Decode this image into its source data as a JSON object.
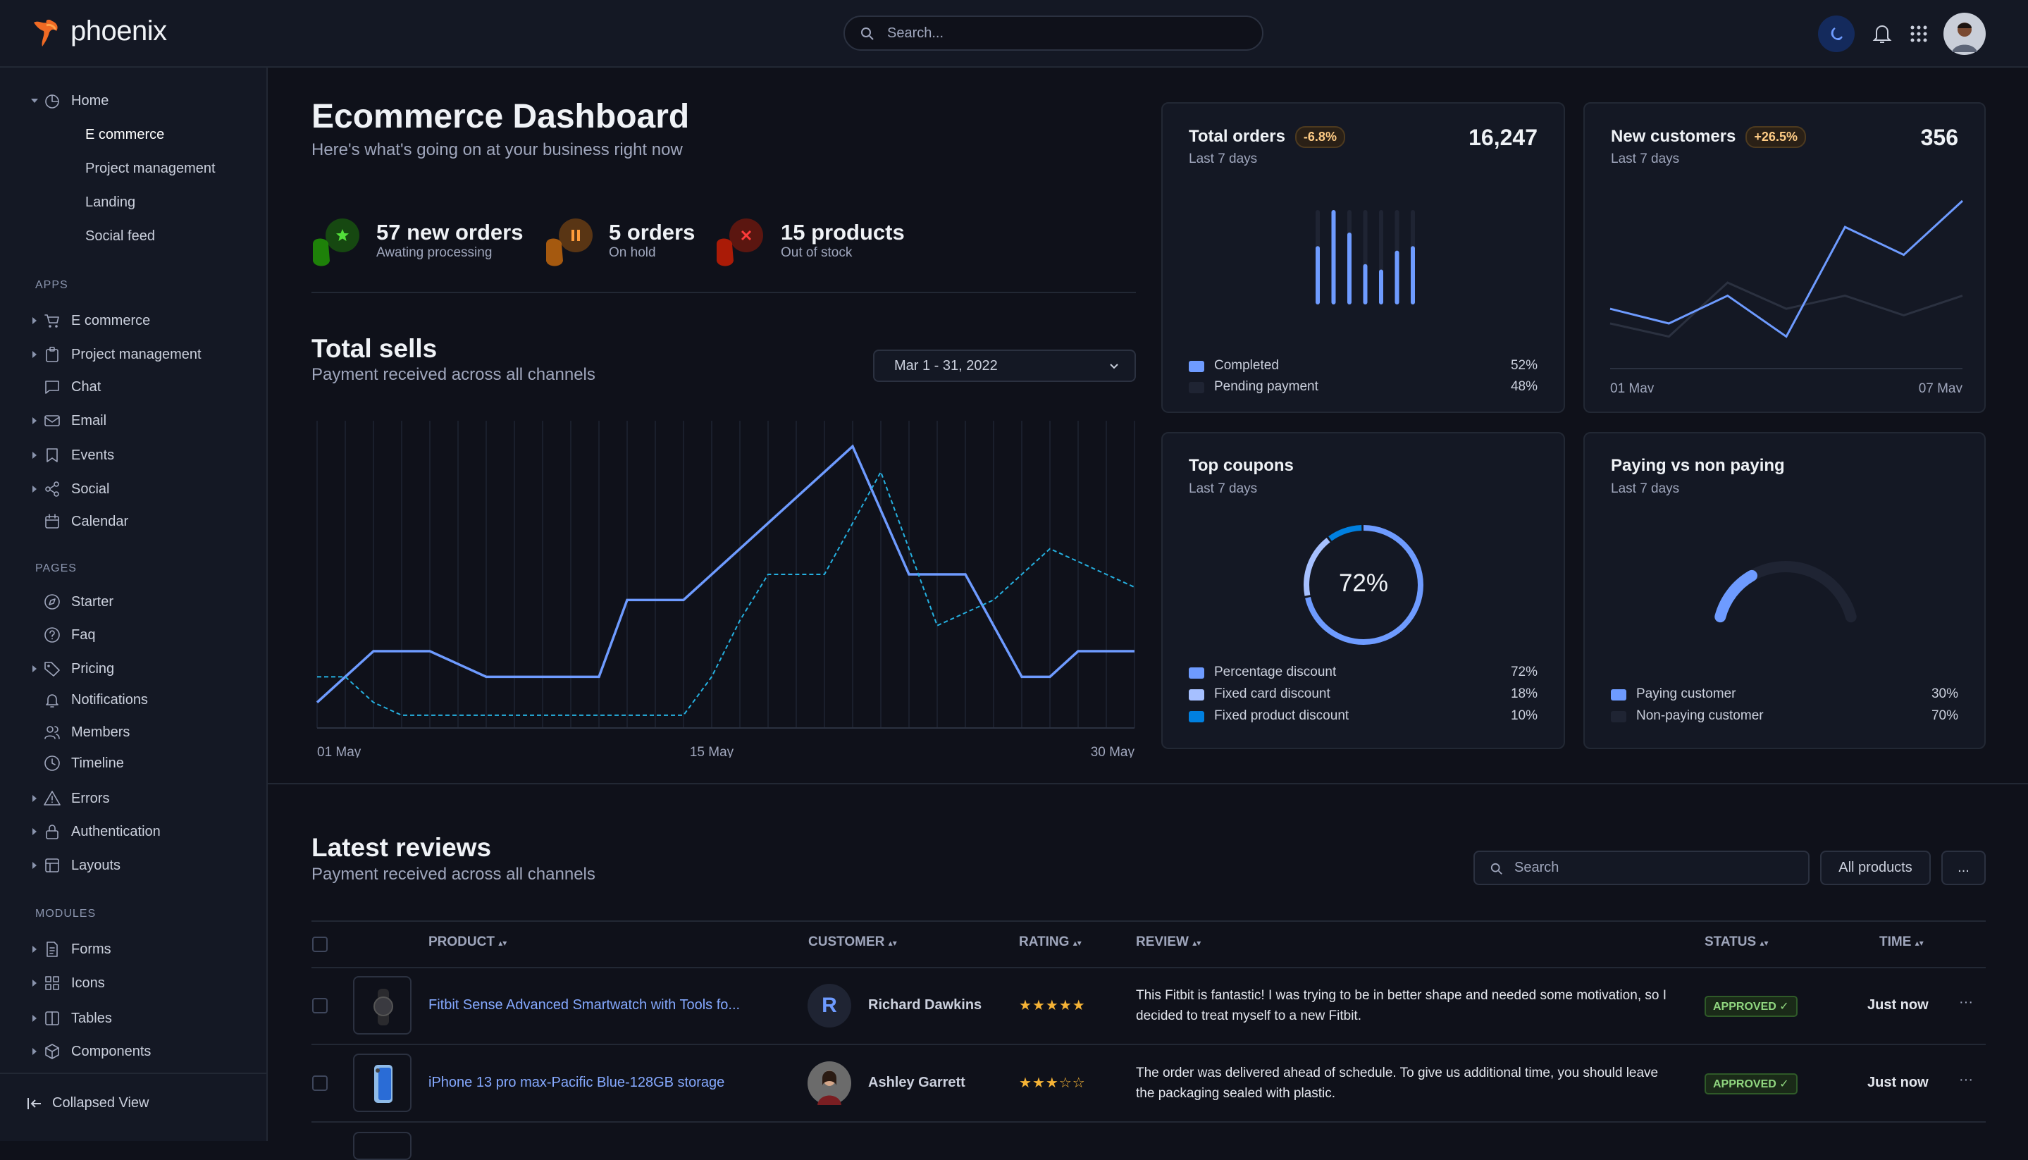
{
  "app": {
    "name": "phoenix",
    "search_placeholder": "Search..."
  },
  "topbar_icons": [
    "moon-icon",
    "bell-icon",
    "apps-grid-icon",
    "user-avatar"
  ],
  "colors": {
    "accent": "#6e9bff",
    "accent_light": "#a6c0ff",
    "cyan": "#25b0e0",
    "muted_series": "#2b3140",
    "badge_warning": "#ffcc85",
    "success": "#90d67f",
    "background": "#0f111a",
    "surface": "#141824"
  },
  "sidebar": {
    "home": {
      "label": "Home",
      "icon": "pie-chart-icon",
      "children": [
        {
          "label": "E commerce",
          "active": true
        },
        {
          "label": "Project management"
        },
        {
          "label": "Landing"
        },
        {
          "label": "Social feed"
        }
      ]
    },
    "sections": [
      {
        "title": "APPS",
        "items": [
          {
            "label": "E commerce",
            "icon": "cart-icon",
            "expandable": true
          },
          {
            "label": "Project management",
            "icon": "clipboard-icon",
            "expandable": true
          },
          {
            "label": "Chat",
            "icon": "chat-icon",
            "expandable": false
          },
          {
            "label": "Email",
            "icon": "mail-icon",
            "expandable": true
          },
          {
            "label": "Events",
            "icon": "bookmark-icon",
            "expandable": true
          },
          {
            "label": "Social",
            "icon": "share-icon",
            "expandable": true
          },
          {
            "label": "Calendar",
            "icon": "calendar-icon",
            "expandable": false
          }
        ]
      },
      {
        "title": "PAGES",
        "items": [
          {
            "label": "Starter",
            "icon": "compass-icon",
            "expandable": false
          },
          {
            "label": "Faq",
            "icon": "help-circle-icon",
            "expandable": false
          },
          {
            "label": "Pricing",
            "icon": "tag-icon",
            "expandable": true
          },
          {
            "label": "Notifications",
            "icon": "bell-icon",
            "expandable": false
          },
          {
            "label": "Members",
            "icon": "users-icon",
            "expandable": false
          },
          {
            "label": "Timeline",
            "icon": "clock-icon",
            "expandable": false
          },
          {
            "label": "Errors",
            "icon": "alert-triangle-icon",
            "expandable": true
          },
          {
            "label": "Authentication",
            "icon": "lock-icon",
            "expandable": true
          },
          {
            "label": "Layouts",
            "icon": "layout-icon",
            "expandable": true
          }
        ]
      },
      {
        "title": "MODULES",
        "items": [
          {
            "label": "Forms",
            "icon": "file-text-icon",
            "expandable": true
          },
          {
            "label": "Icons",
            "icon": "grid-icon",
            "expandable": true
          },
          {
            "label": "Tables",
            "icon": "columns-icon",
            "expandable": true
          },
          {
            "label": "Components",
            "icon": "package-icon",
            "expandable": true
          }
        ]
      }
    ],
    "collapse_label": "Collapsed View"
  },
  "header": {
    "title": "Ecommerce Dashboard",
    "subtitle": "Here's what's going on at your business right now"
  },
  "stats": [
    {
      "value": "57 new orders",
      "label": "Awating processing",
      "icon": "star-icon",
      "color": "#25b003"
    },
    {
      "value": "5 orders",
      "label": "On hold",
      "icon": "pause-icon",
      "color": "#e5780b"
    },
    {
      "value": "15 products",
      "label": "Out of stock",
      "icon": "x-icon",
      "color": "#ec1f00"
    }
  ],
  "total_sells": {
    "title": "Total sells",
    "subtitle": "Payment received across all channels",
    "date_range": "Mar 1 - 31, 2022"
  },
  "cards": {
    "total_orders": {
      "title": "Total orders",
      "badge": "-6.8%",
      "subtitle": "Last 7 days",
      "value": "16,247"
    },
    "new_customers": {
      "title": "New customers",
      "badge": "+26.5%",
      "subtitle": "Last 7 days",
      "value": "356"
    },
    "top_coupons": {
      "title": "Top coupons",
      "subtitle": "Last 7 days",
      "center": "72%"
    },
    "paying": {
      "title": "Paying vs non paying",
      "subtitle": "Last 7 days"
    }
  },
  "chart_data": [
    {
      "id": "total_sells",
      "type": "line",
      "x": [
        "01 May",
        "02 May",
        "03 May",
        "04 May",
        "05 May",
        "06 May",
        "07 May",
        "08 May",
        "09 May",
        "10 May",
        "11 May",
        "12 May",
        "13 May",
        "14 May",
        "15 May",
        "16 May",
        "17 May",
        "18 May",
        "19 May",
        "20 May",
        "21 May",
        "22 May",
        "23 May",
        "24 May",
        "25 May",
        "26 May",
        "27 May",
        "28 May",
        "29 May",
        "30 May"
      ],
      "xticks": [
        "01 May",
        "15 May",
        "30 May"
      ],
      "ylim": [
        0,
        120
      ],
      "grid": "vertical",
      "series": [
        {
          "style": "solid",
          "color": "#6e9bff",
          "values": [
            10,
            20,
            30,
            30,
            30,
            25,
            20,
            20,
            20,
            20,
            20,
            50,
            50,
            50,
            60,
            70,
            80,
            90,
            100,
            110,
            85,
            60,
            60,
            60,
            40,
            20,
            20,
            30,
            30,
            30
          ]
        },
        {
          "style": "dashed",
          "color": "#25b0e0",
          "values": [
            20,
            20,
            10,
            5,
            5,
            5,
            5,
            5,
            5,
            5,
            5,
            5,
            5,
            5,
            20,
            42,
            60,
            60,
            60,
            80,
            100,
            70,
            40,
            45,
            50,
            60,
            70,
            65,
            60,
            55
          ]
        }
      ]
    },
    {
      "id": "total_orders",
      "type": "bar",
      "categories": [
        "1",
        "2",
        "3",
        "4",
        "5",
        "6",
        "7"
      ],
      "values": [
        60,
        100,
        75,
        40,
        34,
        55,
        60
      ],
      "ylim": [
        0,
        100
      ],
      "legend": [
        {
          "name": "Completed",
          "value": "52%",
          "color": "#6e9bff"
        },
        {
          "name": "Pending payment",
          "value": "48%",
          "color": "#1f2433"
        }
      ]
    },
    {
      "id": "new_customers",
      "type": "line",
      "x": [
        "01 May",
        "02 May",
        "03 May",
        "04 May",
        "05 May",
        "06 May",
        "07 May"
      ],
      "xticks": [
        "01 May",
        "07 May"
      ],
      "ylim": [
        0,
        100
      ],
      "series": [
        {
          "color": "#6e9bff",
          "values": [
            34,
            25,
            42,
            17,
            84,
            67,
            100
          ]
        },
        {
          "color": "#2b3140",
          "values": [
            25,
            17,
            50,
            34,
            42,
            30,
            42
          ]
        }
      ]
    },
    {
      "id": "top_coupons",
      "type": "pie",
      "style": "donut",
      "slices": [
        {
          "name": "Percentage discount",
          "value": 72,
          "label": "72%",
          "color": "#6e9bff"
        },
        {
          "name": "Fixed card discount",
          "value": 18,
          "label": "18%",
          "color": "#a6c0ff"
        },
        {
          "name": "Fixed product discount",
          "value": 10,
          "label": "10%",
          "color": "#0080e0"
        }
      ]
    },
    {
      "id": "paying",
      "type": "pie",
      "style": "gauge",
      "slices": [
        {
          "name": "Paying customer",
          "value": 30,
          "label": "30%",
          "color": "#6e9bff"
        },
        {
          "name": "Non-paying customer",
          "value": 70,
          "label": "70%",
          "color": "#1f2433"
        }
      ]
    }
  ],
  "reviews": {
    "title": "Latest reviews",
    "subtitle": "Payment received across all channels",
    "search_placeholder": "Search",
    "filter_label": "All products",
    "more_label": "...",
    "columns": [
      "PRODUCT",
      "CUSTOMER",
      "RATING",
      "REVIEW",
      "STATUS",
      "TIME"
    ],
    "rows": [
      {
        "product": "Fitbit Sense Advanced Smartwatch with Tools fo...",
        "product_image": "smartwatch",
        "customer": "Richard Dawkins",
        "avatar_initial": "R",
        "rating": 5,
        "review": "This Fitbit is fantastic! I was trying to be in better shape and needed some motivation, so I decided to treat myself to a new Fitbit.",
        "status": "APPROVED",
        "time": "Just now"
      },
      {
        "product": "iPhone 13 pro max-Pacific Blue-128GB storage",
        "product_image": "iphone",
        "customer": "Ashley Garrett",
        "avatar_initial": "",
        "rating": 3,
        "review": "The order was delivered ahead of schedule. To give us additional time, you should leave the packaging sealed with plastic.",
        "status": "APPROVED",
        "time": "Just now"
      }
    ]
  }
}
